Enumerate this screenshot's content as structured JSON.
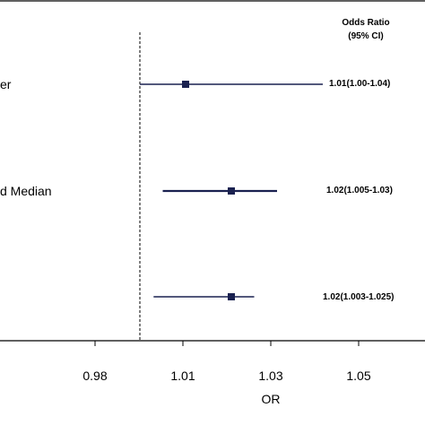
{
  "chart_data": {
    "type": "forest",
    "header": {
      "line1": "Odds Ratio",
      "line2": "(95% CI)"
    },
    "rows": [
      {
        "label": "er",
        "or": 1.01,
        "lo": 1.0,
        "hi": 1.04,
        "ci_text": "1.01(1.00-1.04)"
      },
      {
        "label": "d Median",
        "or": 1.02,
        "lo": 1.005,
        "hi": 1.03,
        "ci_text": "1.02(1.005-1.03)"
      },
      {
        "label": "",
        "or": 1.02,
        "lo": 1.003,
        "hi": 1.025,
        "ci_text": "1.02(1.003-1.025)"
      }
    ],
    "xlabel": "OR",
    "xticks": [
      "0.98",
      "1.01",
      "1.03",
      "1.05"
    ],
    "reference_line": 1.0
  },
  "colors": {
    "marker": "#1a2150",
    "ci_line": "#1a2150",
    "axis": "#000000"
  }
}
